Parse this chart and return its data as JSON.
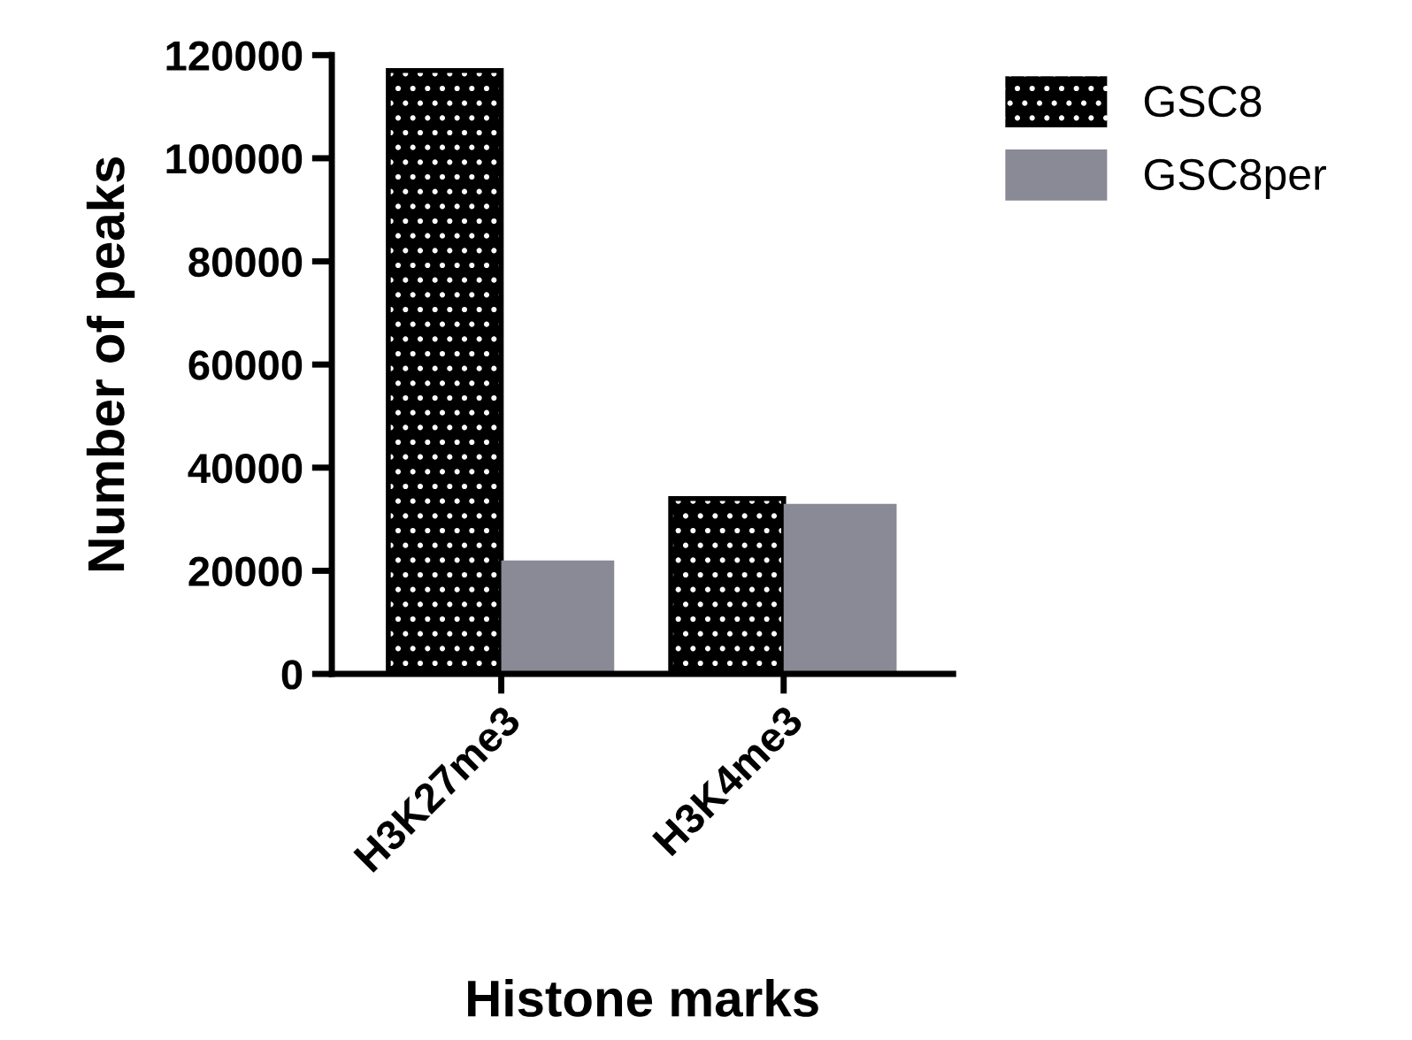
{
  "chart_data": {
    "type": "bar",
    "xlabel": "Histone marks",
    "ylabel": "Number of peaks",
    "categories": [
      "H3K27me3",
      "H3K4me3"
    ],
    "series": [
      {
        "name": "GSC8",
        "color": "#000000",
        "values": [
          117000,
          34000
        ]
      },
      {
        "name": "GSC8per",
        "color": "#8a8a96",
        "values": [
          22000,
          33000
        ]
      }
    ],
    "ylim": [
      0,
      120000
    ],
    "yticks": [
      0,
      20000,
      40000,
      60000,
      80000,
      100000,
      120000
    ],
    "grid": false,
    "legend": "top right"
  }
}
